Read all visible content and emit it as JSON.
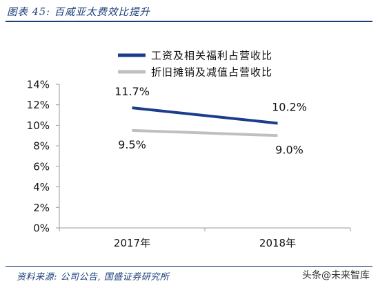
{
  "figure": {
    "title": "图表 45:  百威亚太费效比提升",
    "source": "资料来源: 公司公告, 国盛证券研究所",
    "watermark": "头条@未来智库"
  },
  "chart_data": {
    "type": "line",
    "categories": [
      "2017年",
      "2018年"
    ],
    "series": [
      {
        "name": "工资及相关福利占营收比",
        "values": [
          11.7,
          10.2
        ],
        "labels": [
          "11.7%",
          "10.2%"
        ],
        "color": "#1c3d8c"
      },
      {
        "name": "折旧摊销及减值占营收比",
        "values": [
          9.5,
          9.0
        ],
        "labels": [
          "9.5%",
          "9.0%"
        ],
        "color": "#bfbfbf"
      }
    ],
    "ylim": [
      0,
      14
    ],
    "yticks": [
      "0%",
      "2%",
      "4%",
      "6%",
      "8%",
      "10%",
      "12%",
      "14%"
    ],
    "grid": false,
    "legend": "top-right"
  }
}
